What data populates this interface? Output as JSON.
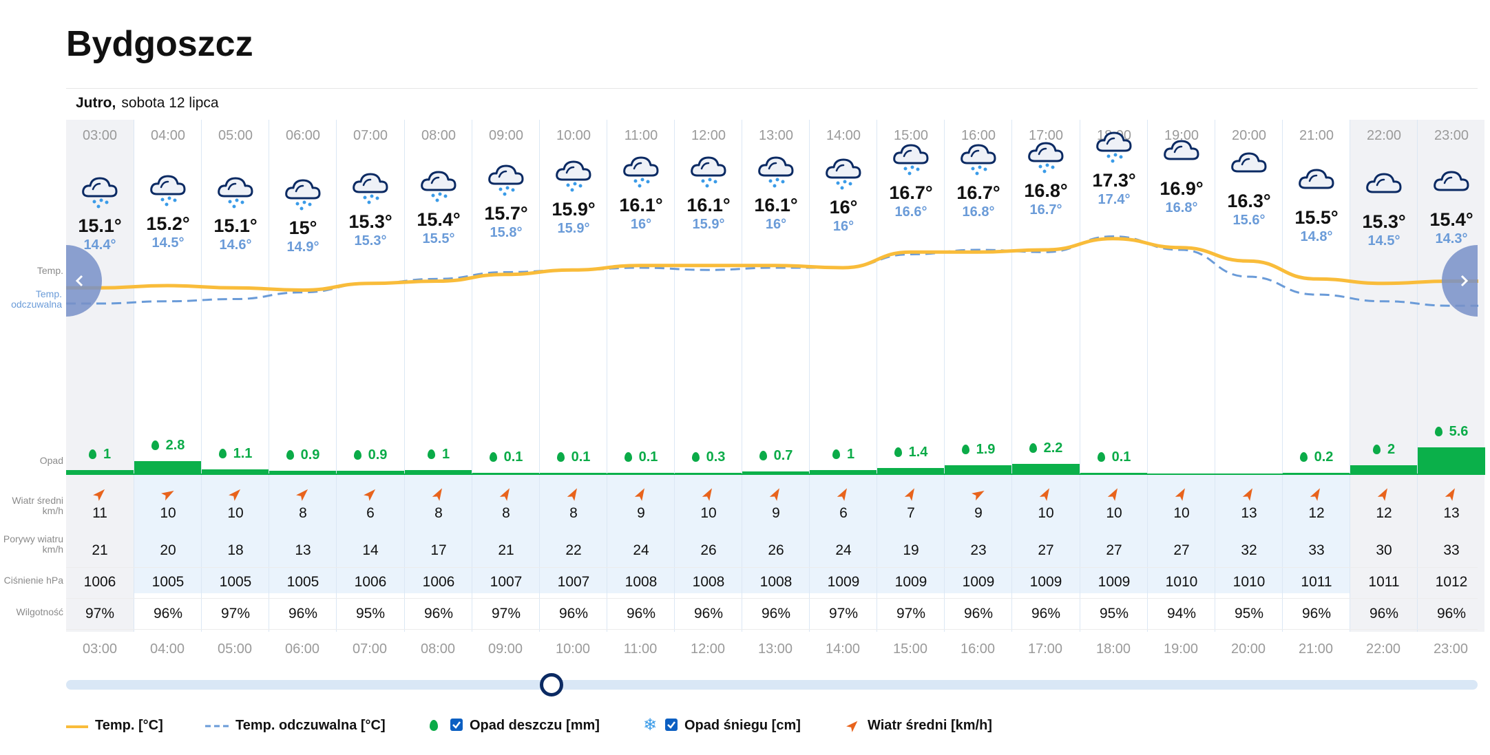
{
  "page": {
    "city": "Bydgoszcz",
    "day_label": "Jutro,",
    "date_label": "sobota 12 lipca"
  },
  "row_labels": {
    "temp": "Temp.",
    "feels": "Temp. odczuwalna",
    "precip": "Opad",
    "wind": "Wiatr średni km/h",
    "gusts": "Porywy wiatru km/h",
    "pressure": "Ciśnienie hPa",
    "humidity": "Wilgotność"
  },
  "hours": [
    {
      "time": "03:00",
      "temp": "15.1°",
      "feels": "14.4°",
      "precip": "1",
      "wind": "11",
      "gusts": "21",
      "pressure": "1006",
      "humidity": "97%"
    },
    {
      "time": "04:00",
      "temp": "15.2°",
      "feels": "14.5°",
      "precip": "2.8",
      "wind": "10",
      "gusts": "20",
      "pressure": "1005",
      "humidity": "96%"
    },
    {
      "time": "05:00",
      "temp": "15.1°",
      "feels": "14.6°",
      "precip": "1.1",
      "wind": "10",
      "gusts": "18",
      "pressure": "1005",
      "humidity": "97%"
    },
    {
      "time": "06:00",
      "temp": "15°",
      "feels": "14.9°",
      "precip": "0.9",
      "wind": "8",
      "gusts": "13",
      "pressure": "1005",
      "humidity": "96%"
    },
    {
      "time": "07:00",
      "temp": "15.3°",
      "feels": "15.3°",
      "precip": "0.9",
      "wind": "6",
      "gusts": "14",
      "pressure": "1006",
      "humidity": "95%"
    },
    {
      "time": "08:00",
      "temp": "15.4°",
      "feels": "15.5°",
      "precip": "1",
      "wind": "8",
      "gusts": "17",
      "pressure": "1006",
      "humidity": "96%"
    },
    {
      "time": "09:00",
      "temp": "15.7°",
      "feels": "15.8°",
      "precip": "0.1",
      "wind": "8",
      "gusts": "21",
      "pressure": "1007",
      "humidity": "97%"
    },
    {
      "time": "10:00",
      "temp": "15.9°",
      "feels": "15.9°",
      "precip": "0.1",
      "wind": "8",
      "gusts": "22",
      "pressure": "1007",
      "humidity": "96%"
    },
    {
      "time": "11:00",
      "temp": "16.1°",
      "feels": "16°",
      "precip": "0.1",
      "wind": "9",
      "gusts": "24",
      "pressure": "1008",
      "humidity": "96%"
    },
    {
      "time": "12:00",
      "temp": "16.1°",
      "feels": "15.9°",
      "precip": "0.3",
      "wind": "10",
      "gusts": "26",
      "pressure": "1008",
      "humidity": "96%"
    },
    {
      "time": "13:00",
      "temp": "16.1°",
      "feels": "16°",
      "precip": "0.7",
      "wind": "9",
      "gusts": "26",
      "pressure": "1008",
      "humidity": "96%"
    },
    {
      "time": "14:00",
      "temp": "16°",
      "feels": "16°",
      "precip": "1",
      "wind": "6",
      "gusts": "24",
      "pressure": "1009",
      "humidity": "97%"
    },
    {
      "time": "15:00",
      "temp": "16.7°",
      "feels": "16.6°",
      "precip": "1.4",
      "wind": "7",
      "gusts": "19",
      "pressure": "1009",
      "humidity": "97%"
    },
    {
      "time": "16:00",
      "temp": "16.7°",
      "feels": "16.8°",
      "precip": "1.9",
      "wind": "9",
      "gusts": "23",
      "pressure": "1009",
      "humidity": "96%"
    },
    {
      "time": "17:00",
      "temp": "16.8°",
      "feels": "16.7°",
      "precip": "2.2",
      "wind": "10",
      "gusts": "27",
      "pressure": "1009",
      "humidity": "96%"
    },
    {
      "time": "18:00",
      "temp": "17.3°",
      "feels": "17.4°",
      "precip": "0.1",
      "wind": "10",
      "gusts": "27",
      "pressure": "1009",
      "humidity": "95%"
    },
    {
      "time": "19:00",
      "temp": "16.9°",
      "feels": "16.8°",
      "precip": "",
      "wind": "10",
      "gusts": "27",
      "pressure": "1010",
      "humidity": "94%"
    },
    {
      "time": "20:00",
      "temp": "16.3°",
      "feels": "15.6°",
      "precip": "",
      "wind": "13",
      "gusts": "32",
      "pressure": "1010",
      "humidity": "95%"
    },
    {
      "time": "21:00",
      "temp": "15.5°",
      "feels": "14.8°",
      "precip": "0.2",
      "wind": "12",
      "gusts": "33",
      "pressure": "1011",
      "humidity": "96%"
    },
    {
      "time": "22:00",
      "temp": "15.3°",
      "feels": "14.5°",
      "precip": "2",
      "wind": "12",
      "gusts": "30",
      "pressure": "1011",
      "humidity": "96%"
    },
    {
      "time": "23:00",
      "temp": "15.4°",
      "feels": "14.3°",
      "precip": "5.6",
      "wind": "13",
      "gusts": "33",
      "pressure": "1012",
      "humidity": "96%"
    }
  ],
  "chart_data": {
    "type": "line",
    "x": [
      "03:00",
      "04:00",
      "05:00",
      "06:00",
      "07:00",
      "08:00",
      "09:00",
      "10:00",
      "11:00",
      "12:00",
      "13:00",
      "14:00",
      "15:00",
      "16:00",
      "17:00",
      "18:00",
      "19:00",
      "20:00",
      "21:00",
      "22:00",
      "23:00"
    ],
    "series": [
      {
        "name": "Temp. [°C]",
        "values": [
          15.1,
          15.2,
          15.1,
          15.0,
          15.3,
          15.4,
          15.7,
          15.9,
          16.1,
          16.1,
          16.1,
          16.0,
          16.7,
          16.7,
          16.8,
          17.3,
          16.9,
          16.3,
          15.5,
          15.3,
          15.4
        ]
      },
      {
        "name": "Temp. odczuwalna [°C]",
        "values": [
          14.4,
          14.5,
          14.6,
          14.9,
          15.3,
          15.5,
          15.8,
          15.9,
          16.0,
          15.9,
          16.0,
          16.0,
          16.6,
          16.8,
          16.7,
          17.4,
          16.8,
          15.6,
          14.8,
          14.5,
          14.3
        ]
      },
      {
        "name": "Opad deszczu [mm]",
        "type": "bar",
        "values": [
          1,
          2.8,
          1.1,
          0.9,
          0.9,
          1,
          0.1,
          0.1,
          0.1,
          0.3,
          0.7,
          1,
          1.4,
          1.9,
          2.2,
          0.1,
          0,
          0,
          0.2,
          2,
          5.6
        ]
      }
    ],
    "wind_direction_deg": [
      45,
      60,
      45,
      45,
      45,
      30,
      30,
      30,
      30,
      30,
      30,
      30,
      30,
      60,
      30,
      30,
      30,
      30,
      30,
      30,
      30
    ]
  },
  "legend": {
    "temp": "Temp. [°C]",
    "feels": "Temp. odczuwalna [°C]",
    "rain": "Opad deszczu [mm]",
    "snow": "Opad śniegu [cm]",
    "wind": "Wiatr średni [km/h]"
  },
  "colors": {
    "temp_line": "#f9bc3a",
    "feels_line": "#6a9bd8",
    "precip": "#0bb04a",
    "wind_arrow": "#e8631c",
    "slider_thumb": "#0b2a63",
    "checkbox": "#0c5fc2"
  },
  "icons": {
    "weather": "cloud-rain-icon",
    "wind": "wind-direction-arrow-icon",
    "rain": "rain-drop-icon",
    "snow": "snowflake-icon",
    "nav_left": "chevron-left-icon",
    "nav_right": "chevron-right-icon"
  }
}
